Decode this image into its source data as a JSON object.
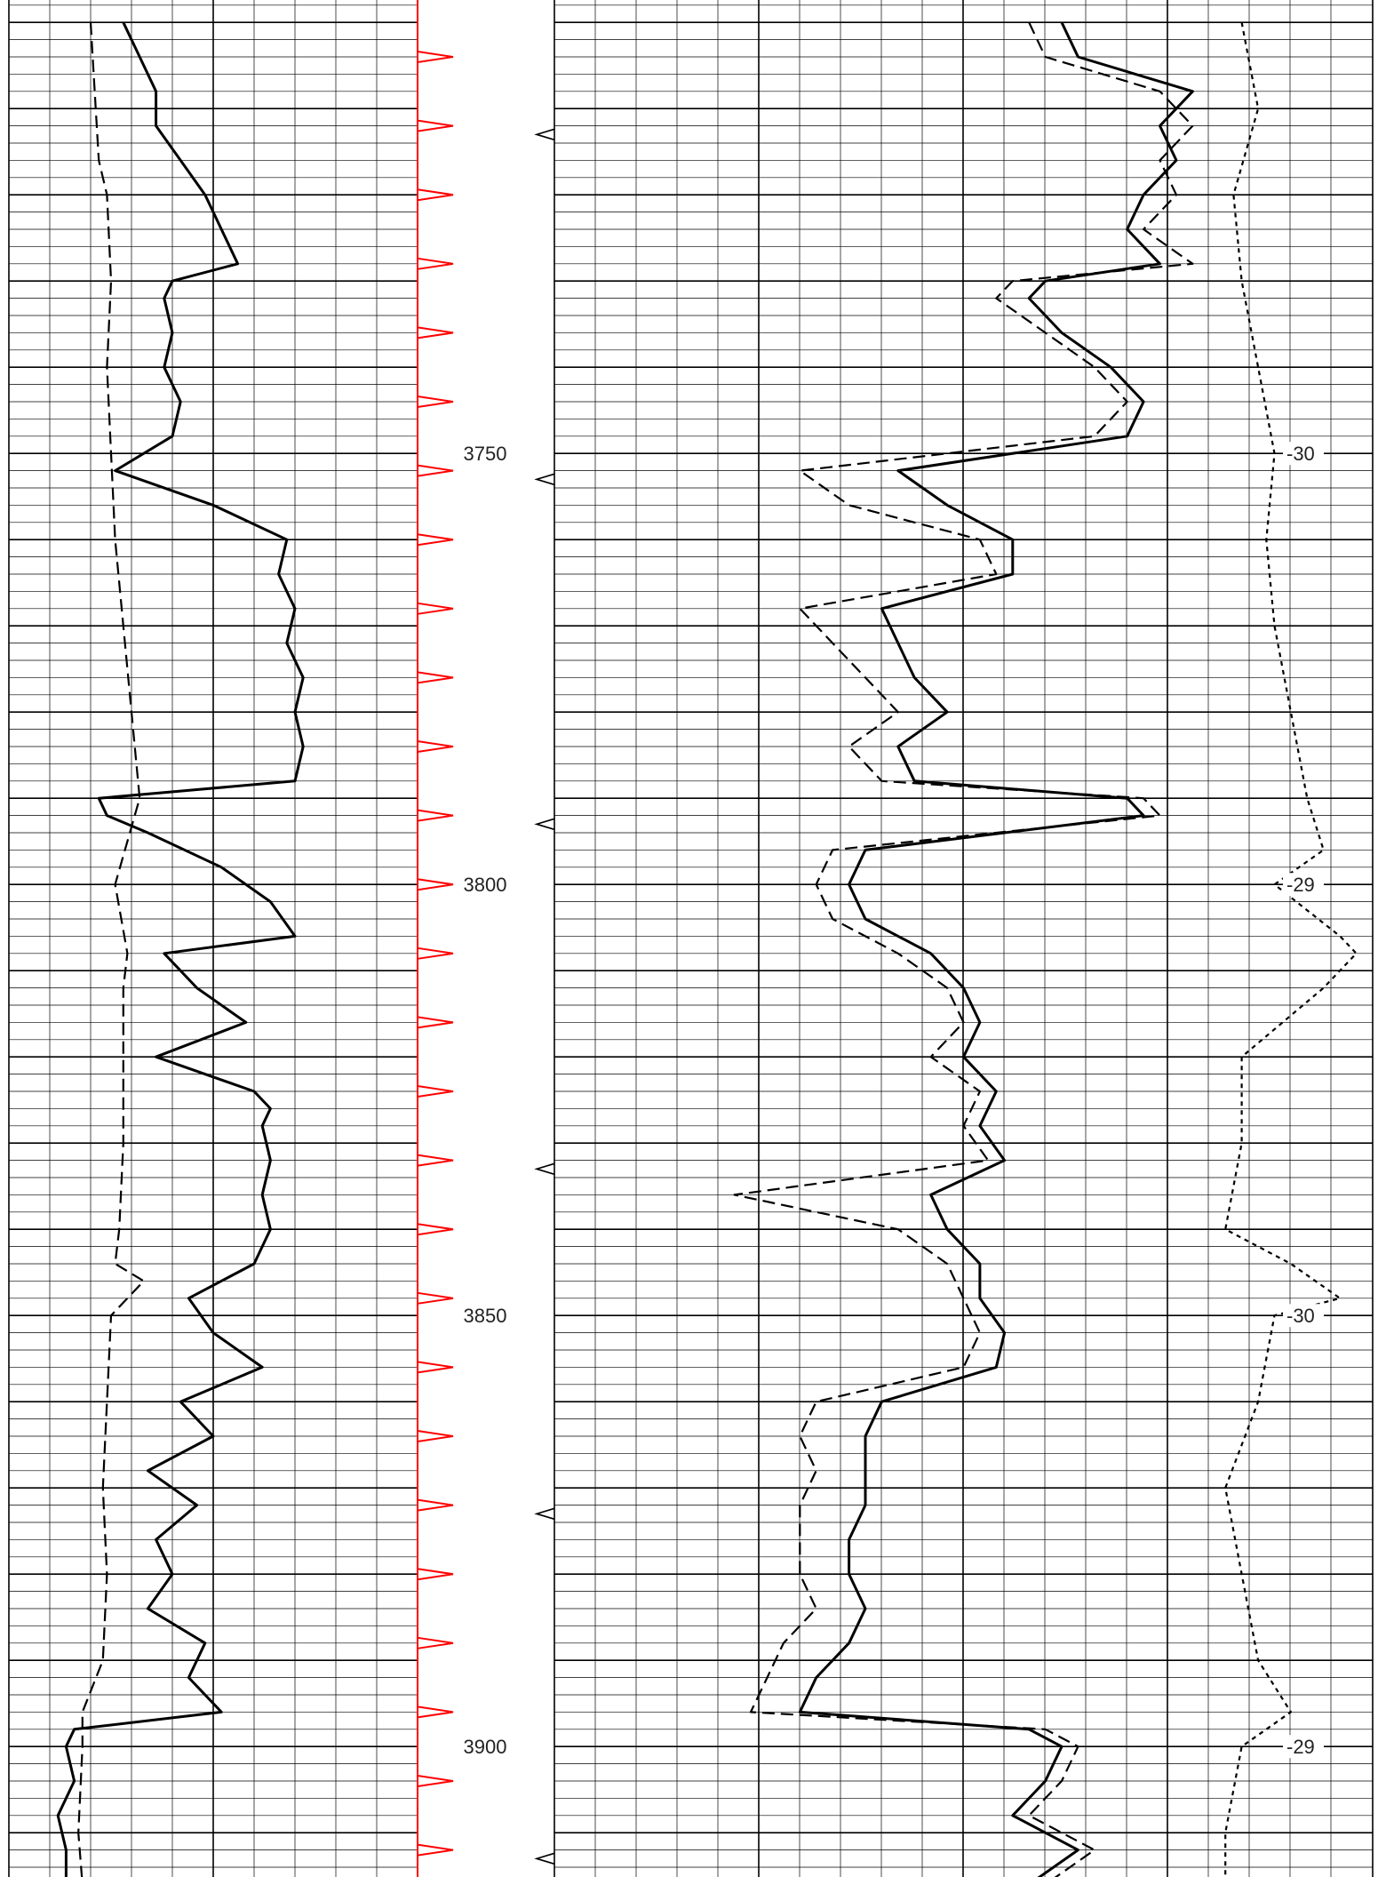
{
  "chart_data": {
    "type": "line",
    "title": "",
    "depth_axis": {
      "range": [
        3700,
        3917
      ],
      "major_step": 50,
      "tick_labels": [
        "3750",
        "3800",
        "3850",
        "3900"
      ]
    },
    "colors": {
      "grid": "#000000",
      "pip_track": "#ff0000",
      "curve": "#000000"
    },
    "tracks": [
      {
        "name": "track1",
        "series": [
          {
            "style": "solid",
            "depth": [
              3700,
              3704,
              3708,
              3712,
              3716,
              3720,
              3724,
              3728,
              3730,
              3732,
              3736,
              3740,
              3744,
              3748,
              3752,
              3756,
              3760,
              3764,
              3768,
              3772,
              3776,
              3780,
              3784,
              3788,
              3790,
              3792,
              3794,
              3798,
              3802,
              3806,
              3808,
              3812,
              3816,
              3820,
              3824,
              3826,
              3828,
              3832,
              3836,
              3840,
              3844,
              3848,
              3852,
              3856,
              3860,
              3864,
              3868,
              3872,
              3876,
              3880,
              3884,
              3888,
              3892,
              3896,
              3898,
              3900,
              3904,
              3908,
              3912,
              3916
            ],
            "value": [
              0.28,
              0.32,
              0.36,
              0.36,
              0.42,
              0.48,
              0.52,
              0.56,
              0.4,
              0.38,
              0.4,
              0.38,
              0.42,
              0.4,
              0.26,
              0.5,
              0.68,
              0.66,
              0.7,
              0.68,
              0.72,
              0.7,
              0.72,
              0.7,
              0.22,
              0.24,
              0.34,
              0.52,
              0.64,
              0.7,
              0.38,
              0.46,
              0.58,
              0.36,
              0.6,
              0.64,
              0.62,
              0.64,
              0.62,
              0.64,
              0.6,
              0.44,
              0.5,
              0.62,
              0.42,
              0.5,
              0.34,
              0.46,
              0.36,
              0.4,
              0.34,
              0.48,
              0.44,
              0.52,
              0.16,
              0.14,
              0.16,
              0.12,
              0.14,
              0.14
            ]
          },
          {
            "style": "dashed",
            "depth": [
              3700,
              3708,
              3716,
              3720,
              3730,
              3740,
              3750,
              3760,
              3770,
              3780,
              3790,
              3800,
              3808,
              3812,
              3820,
              3830,
              3840,
              3844,
              3846,
              3850,
              3860,
              3870,
              3880,
              3890,
              3896,
              3898,
              3900,
              3910,
              3916
            ],
            "value": [
              0.2,
              0.21,
              0.22,
              0.24,
              0.25,
              0.24,
              0.25,
              0.26,
              0.28,
              0.3,
              0.32,
              0.26,
              0.29,
              0.28,
              0.28,
              0.28,
              0.27,
              0.26,
              0.33,
              0.25,
              0.24,
              0.23,
              0.24,
              0.23,
              0.18,
              0.18,
              0.18,
              0.17,
              0.18
            ]
          }
        ]
      },
      {
        "name": "track2",
        "series": [
          {
            "style": "solid",
            "depth": [
              3700,
              3704,
              3708,
              3712,
              3716,
              3720,
              3724,
              3728,
              3730,
              3732,
              3736,
              3740,
              3744,
              3748,
              3752,
              3756,
              3760,
              3764,
              3768,
              3772,
              3776,
              3780,
              3784,
              3788,
              3790,
              3792,
              3796,
              3800,
              3804,
              3808,
              3812,
              3816,
              3820,
              3824,
              3828,
              3832,
              3836,
              3840,
              3844,
              3848,
              3852,
              3856,
              3860,
              3864,
              3868,
              3872,
              3876,
              3880,
              3884,
              3888,
              3892,
              3896,
              3898,
              3900,
              3904,
              3908,
              3912,
              3916
            ],
            "value": [
              0.62,
              0.64,
              0.78,
              0.74,
              0.76,
              0.72,
              0.7,
              0.74,
              0.6,
              0.58,
              0.62,
              0.68,
              0.72,
              0.7,
              0.42,
              0.48,
              0.56,
              0.56,
              0.4,
              0.42,
              0.44,
              0.48,
              0.42,
              0.44,
              0.7,
              0.72,
              0.38,
              0.36,
              0.38,
              0.46,
              0.5,
              0.52,
              0.5,
              0.54,
              0.52,
              0.55,
              0.46,
              0.48,
              0.52,
              0.52,
              0.55,
              0.54,
              0.4,
              0.38,
              0.38,
              0.38,
              0.36,
              0.36,
              0.38,
              0.36,
              0.32,
              0.3,
              0.58,
              0.62,
              0.6,
              0.56,
              0.64,
              0.58
            ]
          },
          {
            "style": "dashed",
            "depth": [
              3700,
              3704,
              3708,
              3712,
              3716,
              3720,
              3724,
              3728,
              3730,
              3732,
              3736,
              3740,
              3744,
              3748,
              3752,
              3756,
              3760,
              3764,
              3768,
              3772,
              3776,
              3780,
              3784,
              3788,
              3790,
              3792,
              3796,
              3800,
              3804,
              3808,
              3812,
              3816,
              3820,
              3824,
              3828,
              3832,
              3836,
              3840,
              3844,
              3848,
              3852,
              3856,
              3860,
              3864,
              3868,
              3872,
              3876,
              3880,
              3884,
              3888,
              3892,
              3896,
              3898,
              3900,
              3904,
              3908,
              3912,
              3916
            ],
            "value": [
              0.58,
              0.6,
              0.74,
              0.78,
              0.74,
              0.76,
              0.72,
              0.78,
              0.56,
              0.54,
              0.6,
              0.66,
              0.7,
              0.66,
              0.3,
              0.36,
              0.52,
              0.54,
              0.3,
              0.34,
              0.38,
              0.42,
              0.36,
              0.4,
              0.72,
              0.74,
              0.34,
              0.32,
              0.34,
              0.42,
              0.48,
              0.5,
              0.46,
              0.52,
              0.5,
              0.53,
              0.22,
              0.42,
              0.48,
              0.5,
              0.52,
              0.5,
              0.32,
              0.3,
              0.32,
              0.3,
              0.3,
              0.3,
              0.32,
              0.28,
              0.26,
              0.24,
              0.6,
              0.64,
              0.62,
              0.58,
              0.66,
              0.6
            ]
          },
          {
            "style": "dotted",
            "depth": [
              3700,
              3710,
              3720,
              3730,
              3740,
              3750,
              3760,
              3770,
              3780,
              3790,
              3796,
              3800,
              3806,
              3808,
              3812,
              3820,
              3830,
              3840,
              3844,
              3848,
              3850,
              3860,
              3870,
              3880,
              3890,
              3896,
              3900,
              3910,
              3916
            ],
            "value": [
              0.84,
              0.86,
              0.83,
              0.84,
              0.86,
              0.88,
              0.87,
              0.88,
              0.9,
              0.92,
              0.94,
              0.88,
              0.96,
              0.98,
              0.94,
              0.84,
              0.84,
              0.82,
              0.9,
              0.96,
              0.88,
              0.86,
              0.82,
              0.84,
              0.86,
              0.9,
              0.84,
              0.82,
              0.82
            ]
          }
        ]
      }
    ],
    "scale_labels": [
      {
        "depth": 3750,
        "text": "-30"
      },
      {
        "depth": 3800,
        "text": "-29"
      },
      {
        "depth": 3850,
        "text": "-30"
      },
      {
        "depth": 3900,
        "text": "-29"
      }
    ]
  }
}
